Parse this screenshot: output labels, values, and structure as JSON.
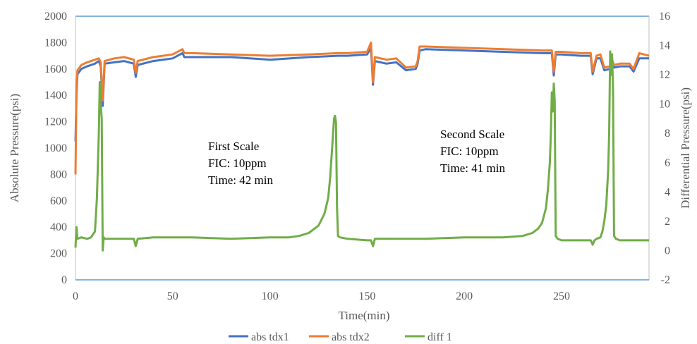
{
  "chart_data": {
    "type": "line",
    "xlabel": "Time(min)",
    "ylabel": "Absolute Pressure(psi)",
    "y2label": "Differential  Pressure(psi)",
    "xlim": [
      0,
      295
    ],
    "ylim": [
      0,
      2000
    ],
    "y2lim": [
      -2,
      16
    ],
    "xticks": [
      0,
      50,
      100,
      150,
      200,
      250
    ],
    "yticks": [
      0,
      200,
      400,
      600,
      800,
      1000,
      1200,
      1400,
      1600,
      1800,
      2000
    ],
    "y2ticks": [
      -2,
      0,
      2,
      4,
      6,
      8,
      10,
      12,
      14,
      16
    ],
    "grid": false,
    "legend_position": "bottom",
    "colors": {
      "abs_tdx1": "#4472C4",
      "abs_tdx2": "#ED7D31",
      "diff_1": "#70AD47",
      "frame": "#5B9BD5"
    },
    "annotations": [
      {
        "lines": [
          "First Scale",
          "FIC:  10ppm",
          "Time:  42  min"
        ]
      },
      {
        "lines": [
          "Second Scale",
          "FIC:  10ppm",
          "Time:  41  min"
        ]
      }
    ],
    "series": [
      {
        "name": "abs tdx1",
        "axis": "left",
        "x": [
          0,
          0.5,
          1,
          3,
          6,
          10,
          12,
          13,
          14,
          15,
          20,
          25,
          30,
          31,
          32,
          40,
          50,
          55,
          56,
          60,
          80,
          100,
          120,
          135,
          140,
          150,
          152,
          153,
          154,
          160,
          165,
          170,
          175,
          176,
          177,
          180,
          200,
          220,
          240,
          245,
          246,
          247,
          250,
          260,
          265,
          266,
          268,
          270,
          272,
          275,
          276,
          277,
          280,
          285,
          287,
          290,
          295
        ],
        "y": [
          1050,
          1400,
          1560,
          1600,
          1620,
          1640,
          1660,
          1620,
          1320,
          1640,
          1650,
          1660,
          1640,
          1540,
          1630,
          1660,
          1680,
          1720,
          1690,
          1690,
          1690,
          1670,
          1690,
          1700,
          1700,
          1710,
          1760,
          1480,
          1660,
          1640,
          1650,
          1590,
          1600,
          1640,
          1740,
          1750,
          1740,
          1730,
          1720,
          1720,
          1550,
          1710,
          1710,
          1700,
          1700,
          1560,
          1680,
          1680,
          1590,
          1600,
          1650,
          1610,
          1620,
          1620,
          1580,
          1680,
          1680
        ]
      },
      {
        "name": "abs tdx2",
        "axis": "left",
        "x": [
          0,
          0.5,
          1,
          3,
          6,
          10,
          12,
          13,
          14,
          15,
          20,
          25,
          30,
          31,
          32,
          40,
          50,
          55,
          56,
          60,
          80,
          100,
          120,
          135,
          140,
          150,
          152,
          153,
          154,
          160,
          165,
          170,
          175,
          176,
          177,
          180,
          200,
          220,
          240,
          245,
          246,
          247,
          250,
          260,
          265,
          266,
          268,
          270,
          272,
          275,
          276,
          277,
          280,
          285,
          287,
          290,
          295
        ],
        "y": [
          800,
          1450,
          1590,
          1630,
          1650,
          1670,
          1680,
          1650,
          1360,
          1660,
          1680,
          1690,
          1670,
          1570,
          1660,
          1690,
          1710,
          1750,
          1720,
          1720,
          1710,
          1700,
          1710,
          1720,
          1720,
          1730,
          1800,
          1500,
          1690,
          1670,
          1680,
          1610,
          1620,
          1660,
          1770,
          1770,
          1760,
          1750,
          1740,
          1740,
          1580,
          1730,
          1730,
          1720,
          1720,
          1580,
          1700,
          1710,
          1610,
          1620,
          1670,
          1630,
          1640,
          1640,
          1600,
          1720,
          1700
        ]
      },
      {
        "name": "diff 1",
        "axis": "right",
        "x": [
          0,
          0.5,
          1,
          3,
          6,
          8,
          10,
          11,
          12,
          12.5,
          13,
          13.5,
          14,
          14.5,
          15,
          20,
          30,
          31,
          32,
          40,
          60,
          80,
          100,
          110,
          115,
          120,
          125,
          128,
          130,
          131,
          132,
          133,
          133.5,
          134,
          134.5,
          135,
          136,
          140,
          150,
          152,
          153,
          154,
          160,
          180,
          200,
          220,
          230,
          235,
          238,
          240,
          242,
          243,
          244,
          244.5,
          245,
          245.5,
          246,
          246.5,
          247,
          248,
          250,
          260,
          265,
          266,
          267,
          268,
          270,
          271,
          272,
          273,
          274,
          274.5,
          275,
          275.5,
          276,
          276.5,
          277,
          278,
          280,
          285,
          290,
          295
        ],
        "y": [
          0.2,
          1.6,
          0.8,
          0.9,
          0.8,
          0.9,
          1.3,
          3.5,
          8.0,
          11.5,
          10.0,
          9.0,
          0.0,
          0.9,
          0.8,
          0.8,
          0.8,
          0.3,
          0.8,
          0.9,
          0.9,
          0.8,
          0.9,
          0.9,
          1.0,
          1.2,
          1.7,
          2.5,
          3.6,
          5.0,
          7.0,
          9.0,
          9.2,
          8.7,
          3.0,
          1.0,
          0.9,
          0.8,
          0.7,
          0.7,
          0.3,
          0.8,
          0.8,
          0.8,
          0.9,
          0.9,
          1.0,
          1.2,
          1.5,
          1.9,
          2.9,
          4.2,
          6.0,
          7.9,
          10.8,
          9.5,
          11.4,
          10.2,
          1.0,
          0.8,
          0.7,
          0.7,
          0.7,
          0.4,
          0.7,
          0.8,
          0.9,
          1.3,
          2.0,
          3.1,
          5.5,
          8.0,
          13.6,
          12.0,
          13.4,
          11.0,
          1.0,
          0.8,
          0.7,
          0.7,
          0.7,
          0.7
        ]
      }
    ]
  }
}
